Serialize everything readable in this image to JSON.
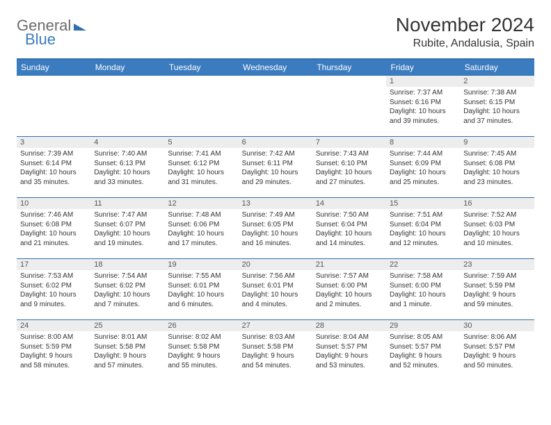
{
  "brand": {
    "general": "General",
    "blue": "Blue"
  },
  "title": "November 2024",
  "location": "Rubite, Andalusia, Spain",
  "colors": {
    "header_bg": "#3b7bbf",
    "header_text": "#ffffff",
    "rule": "#2f6fb0",
    "daynum_bg": "#ededed",
    "body_text": "#333333"
  },
  "day_headers": [
    "Sunday",
    "Monday",
    "Tuesday",
    "Wednesday",
    "Thursday",
    "Friday",
    "Saturday"
  ],
  "weeks": [
    [
      null,
      null,
      null,
      null,
      null,
      {
        "n": "1",
        "sr": "Sunrise: 7:37 AM",
        "ss": "Sunset: 6:16 PM",
        "d1": "Daylight: 10 hours",
        "d2": "and 39 minutes."
      },
      {
        "n": "2",
        "sr": "Sunrise: 7:38 AM",
        "ss": "Sunset: 6:15 PM",
        "d1": "Daylight: 10 hours",
        "d2": "and 37 minutes."
      }
    ],
    [
      {
        "n": "3",
        "sr": "Sunrise: 7:39 AM",
        "ss": "Sunset: 6:14 PM",
        "d1": "Daylight: 10 hours",
        "d2": "and 35 minutes."
      },
      {
        "n": "4",
        "sr": "Sunrise: 7:40 AM",
        "ss": "Sunset: 6:13 PM",
        "d1": "Daylight: 10 hours",
        "d2": "and 33 minutes."
      },
      {
        "n": "5",
        "sr": "Sunrise: 7:41 AM",
        "ss": "Sunset: 6:12 PM",
        "d1": "Daylight: 10 hours",
        "d2": "and 31 minutes."
      },
      {
        "n": "6",
        "sr": "Sunrise: 7:42 AM",
        "ss": "Sunset: 6:11 PM",
        "d1": "Daylight: 10 hours",
        "d2": "and 29 minutes."
      },
      {
        "n": "7",
        "sr": "Sunrise: 7:43 AM",
        "ss": "Sunset: 6:10 PM",
        "d1": "Daylight: 10 hours",
        "d2": "and 27 minutes."
      },
      {
        "n": "8",
        "sr": "Sunrise: 7:44 AM",
        "ss": "Sunset: 6:09 PM",
        "d1": "Daylight: 10 hours",
        "d2": "and 25 minutes."
      },
      {
        "n": "9",
        "sr": "Sunrise: 7:45 AM",
        "ss": "Sunset: 6:08 PM",
        "d1": "Daylight: 10 hours",
        "d2": "and 23 minutes."
      }
    ],
    [
      {
        "n": "10",
        "sr": "Sunrise: 7:46 AM",
        "ss": "Sunset: 6:08 PM",
        "d1": "Daylight: 10 hours",
        "d2": "and 21 minutes."
      },
      {
        "n": "11",
        "sr": "Sunrise: 7:47 AM",
        "ss": "Sunset: 6:07 PM",
        "d1": "Daylight: 10 hours",
        "d2": "and 19 minutes."
      },
      {
        "n": "12",
        "sr": "Sunrise: 7:48 AM",
        "ss": "Sunset: 6:06 PM",
        "d1": "Daylight: 10 hours",
        "d2": "and 17 minutes."
      },
      {
        "n": "13",
        "sr": "Sunrise: 7:49 AM",
        "ss": "Sunset: 6:05 PM",
        "d1": "Daylight: 10 hours",
        "d2": "and 16 minutes."
      },
      {
        "n": "14",
        "sr": "Sunrise: 7:50 AM",
        "ss": "Sunset: 6:04 PM",
        "d1": "Daylight: 10 hours",
        "d2": "and 14 minutes."
      },
      {
        "n": "15",
        "sr": "Sunrise: 7:51 AM",
        "ss": "Sunset: 6:04 PM",
        "d1": "Daylight: 10 hours",
        "d2": "and 12 minutes."
      },
      {
        "n": "16",
        "sr": "Sunrise: 7:52 AM",
        "ss": "Sunset: 6:03 PM",
        "d1": "Daylight: 10 hours",
        "d2": "and 10 minutes."
      }
    ],
    [
      {
        "n": "17",
        "sr": "Sunrise: 7:53 AM",
        "ss": "Sunset: 6:02 PM",
        "d1": "Daylight: 10 hours",
        "d2": "and 9 minutes."
      },
      {
        "n": "18",
        "sr": "Sunrise: 7:54 AM",
        "ss": "Sunset: 6:02 PM",
        "d1": "Daylight: 10 hours",
        "d2": "and 7 minutes."
      },
      {
        "n": "19",
        "sr": "Sunrise: 7:55 AM",
        "ss": "Sunset: 6:01 PM",
        "d1": "Daylight: 10 hours",
        "d2": "and 6 minutes."
      },
      {
        "n": "20",
        "sr": "Sunrise: 7:56 AM",
        "ss": "Sunset: 6:01 PM",
        "d1": "Daylight: 10 hours",
        "d2": "and 4 minutes."
      },
      {
        "n": "21",
        "sr": "Sunrise: 7:57 AM",
        "ss": "Sunset: 6:00 PM",
        "d1": "Daylight: 10 hours",
        "d2": "and 2 minutes."
      },
      {
        "n": "22",
        "sr": "Sunrise: 7:58 AM",
        "ss": "Sunset: 6:00 PM",
        "d1": "Daylight: 10 hours",
        "d2": "and 1 minute."
      },
      {
        "n": "23",
        "sr": "Sunrise: 7:59 AM",
        "ss": "Sunset: 5:59 PM",
        "d1": "Daylight: 9 hours",
        "d2": "and 59 minutes."
      }
    ],
    [
      {
        "n": "24",
        "sr": "Sunrise: 8:00 AM",
        "ss": "Sunset: 5:59 PM",
        "d1": "Daylight: 9 hours",
        "d2": "and 58 minutes."
      },
      {
        "n": "25",
        "sr": "Sunrise: 8:01 AM",
        "ss": "Sunset: 5:58 PM",
        "d1": "Daylight: 9 hours",
        "d2": "and 57 minutes."
      },
      {
        "n": "26",
        "sr": "Sunrise: 8:02 AM",
        "ss": "Sunset: 5:58 PM",
        "d1": "Daylight: 9 hours",
        "d2": "and 55 minutes."
      },
      {
        "n": "27",
        "sr": "Sunrise: 8:03 AM",
        "ss": "Sunset: 5:58 PM",
        "d1": "Daylight: 9 hours",
        "d2": "and 54 minutes."
      },
      {
        "n": "28",
        "sr": "Sunrise: 8:04 AM",
        "ss": "Sunset: 5:57 PM",
        "d1": "Daylight: 9 hours",
        "d2": "and 53 minutes."
      },
      {
        "n": "29",
        "sr": "Sunrise: 8:05 AM",
        "ss": "Sunset: 5:57 PM",
        "d1": "Daylight: 9 hours",
        "d2": "and 52 minutes."
      },
      {
        "n": "30",
        "sr": "Sunrise: 8:06 AM",
        "ss": "Sunset: 5:57 PM",
        "d1": "Daylight: 9 hours",
        "d2": "and 50 minutes."
      }
    ]
  ]
}
